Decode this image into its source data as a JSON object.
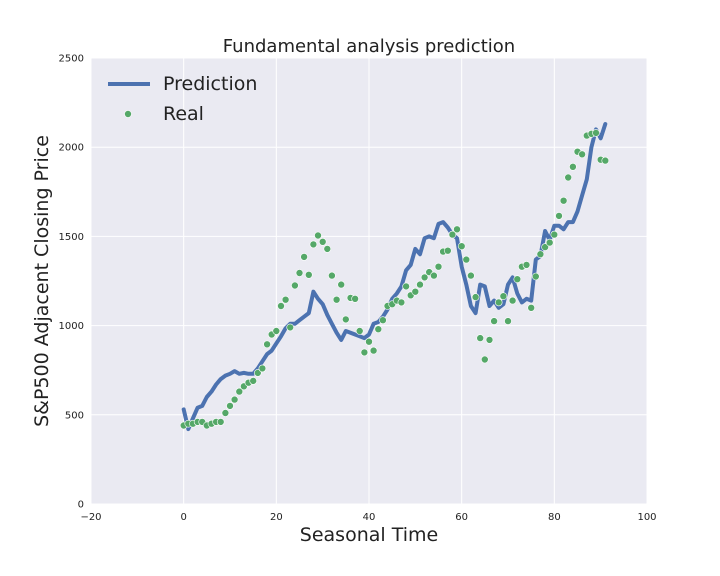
{
  "chart_data": {
    "type": "line",
    "title": "Fundamental analysis prediction",
    "xlabel": "Seasonal Time",
    "ylabel": "S&P500 Adjacent Closing Price",
    "xlim": [
      -20,
      100
    ],
    "ylim": [
      0,
      2500
    ],
    "xticks": [
      "−20",
      "0",
      "20",
      "40",
      "60",
      "80",
      "100"
    ],
    "xtick_values": [
      -20,
      0,
      20,
      40,
      60,
      80,
      100
    ],
    "yticks": [
      "0",
      "500",
      "1000",
      "1500",
      "2000",
      "2500"
    ],
    "ytick_values": [
      0,
      500,
      1000,
      1500,
      2000,
      2500
    ],
    "grid": true,
    "legend_position": "top-left",
    "series": [
      {
        "name": "Prediction",
        "style": "line",
        "color": "#4c72b0",
        "x": [
          0,
          1,
          2,
          3,
          4,
          5,
          6,
          7,
          8,
          9,
          10,
          11,
          12,
          13,
          14,
          15,
          16,
          17,
          18,
          19,
          20,
          21,
          22,
          23,
          24,
          25,
          26,
          27,
          28,
          29,
          30,
          31,
          32,
          33,
          34,
          35,
          36,
          37,
          38,
          39,
          40,
          41,
          42,
          43,
          44,
          45,
          46,
          47,
          48,
          49,
          50,
          51,
          52,
          53,
          54,
          55,
          56,
          57,
          58,
          59,
          60,
          61,
          62,
          63,
          64,
          65,
          66,
          67,
          68,
          69,
          70,
          71,
          72,
          73,
          74,
          75,
          76,
          77,
          78,
          79,
          80,
          81,
          82,
          83,
          84,
          85,
          86,
          87,
          88,
          89,
          90,
          91
        ],
        "y": [
          530,
          420,
          480,
          540,
          550,
          600,
          630,
          670,
          700,
          720,
          730,
          745,
          730,
          735,
          730,
          730,
          760,
          800,
          840,
          860,
          900,
          940,
          985,
          1010,
          1010,
          1030,
          1050,
          1070,
          1190,
          1150,
          1120,
          1060,
          1010,
          960,
          920,
          970,
          960,
          950,
          940,
          930,
          950,
          1010,
          1020,
          1050,
          1090,
          1150,
          1180,
          1220,
          1310,
          1340,
          1430,
          1400,
          1490,
          1500,
          1490,
          1570,
          1580,
          1550,
          1510,
          1490,
          1330,
          1230,
          1110,
          1070,
          1230,
          1220,
          1110,
          1140,
          1100,
          1120,
          1230,
          1270,
          1180,
          1130,
          1150,
          1140,
          1370,
          1390,
          1530,
          1480,
          1560,
          1560,
          1540,
          1580,
          1580,
          1640,
          1730,
          1820,
          2000,
          2100,
          2050,
          2130
        ]
      },
      {
        "name": "Real",
        "style": "scatter",
        "color": "#55a868",
        "x": [
          0,
          1,
          2,
          3,
          4,
          5,
          6,
          7,
          8,
          9,
          10,
          11,
          12,
          13,
          14,
          15,
          16,
          17,
          18,
          19,
          20,
          21,
          22,
          23,
          24,
          25,
          26,
          27,
          28,
          29,
          30,
          31,
          32,
          33,
          34,
          35,
          36,
          37,
          38,
          39,
          40,
          41,
          42,
          43,
          44,
          45,
          46,
          47,
          48,
          49,
          50,
          51,
          52,
          53,
          54,
          55,
          56,
          57,
          58,
          59,
          60,
          61,
          62,
          63,
          64,
          65,
          66,
          67,
          68,
          69,
          70,
          71,
          72,
          73,
          74,
          75,
          76,
          77,
          78,
          79,
          80,
          81,
          82,
          83,
          84,
          85,
          86,
          87,
          88,
          89,
          90,
          91
        ],
        "y": [
          440,
          450,
          450,
          460,
          460,
          440,
          450,
          460,
          460,
          510,
          550,
          585,
          630,
          660,
          680,
          690,
          735,
          760,
          895,
          950,
          970,
          1110,
          1145,
          990,
          1225,
          1295,
          1385,
          1285,
          1455,
          1505,
          1470,
          1430,
          1280,
          1145,
          1230,
          1035,
          1155,
          1150,
          970,
          850,
          910,
          860,
          980,
          1030,
          1110,
          1120,
          1140,
          1130,
          1220,
          1170,
          1190,
          1230,
          1270,
          1300,
          1280,
          1330,
          1415,
          1420,
          1510,
          1540,
          1445,
          1370,
          1280,
          1160,
          930,
          810,
          920,
          1025,
          1130,
          1165,
          1025,
          1140,
          1260,
          1330,
          1340,
          1100,
          1275,
          1400,
          1440,
          1465,
          1510,
          1615,
          1700,
          1830,
          1890,
          1975,
          1960,
          2065,
          2075,
          2080,
          1930,
          1925
        ]
      }
    ]
  }
}
